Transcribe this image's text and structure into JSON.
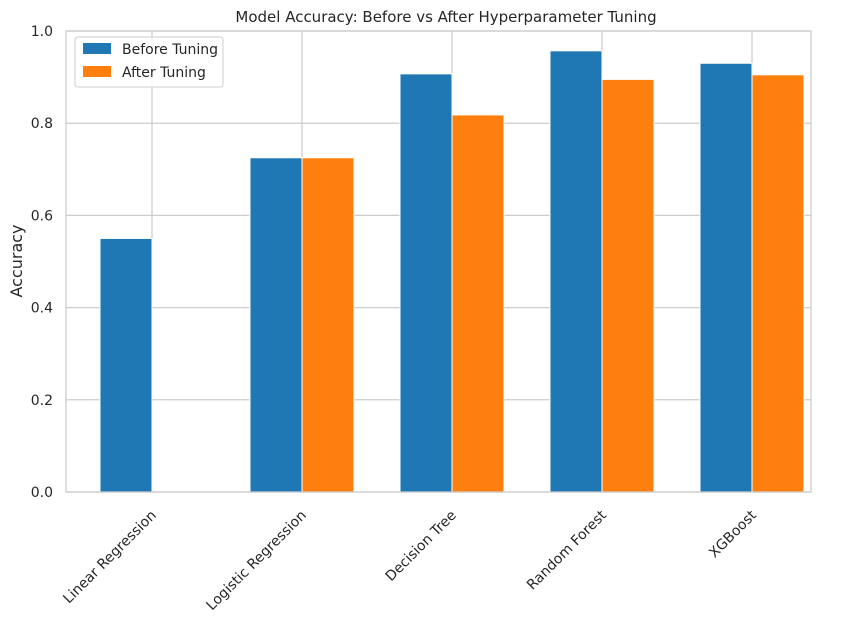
{
  "chart_data": {
    "type": "bar",
    "title": "Model Accuracy: Before vs After Hyperparameter Tuning",
    "xlabel": "",
    "ylabel": "Accuracy",
    "ylim": [
      0,
      1.0
    ],
    "yticks": [
      "0.0",
      "0.2",
      "0.4",
      "0.6",
      "0.8",
      "1.0"
    ],
    "categories": [
      "Linear Regression",
      "Logistic Regression",
      "Decision Tree",
      "Random Forest",
      "XGBoost"
    ],
    "series": [
      {
        "name": "Before Tuning",
        "color": "#1f77b4",
        "values": [
          0.55,
          0.725,
          0.907,
          0.957,
          0.93
        ]
      },
      {
        "name": "After Tuning",
        "color": "#ff7f0e",
        "values": [
          0.0,
          0.725,
          0.818,
          0.895,
          0.905
        ]
      }
    ],
    "grid": true,
    "legend_position": "top-left"
  }
}
